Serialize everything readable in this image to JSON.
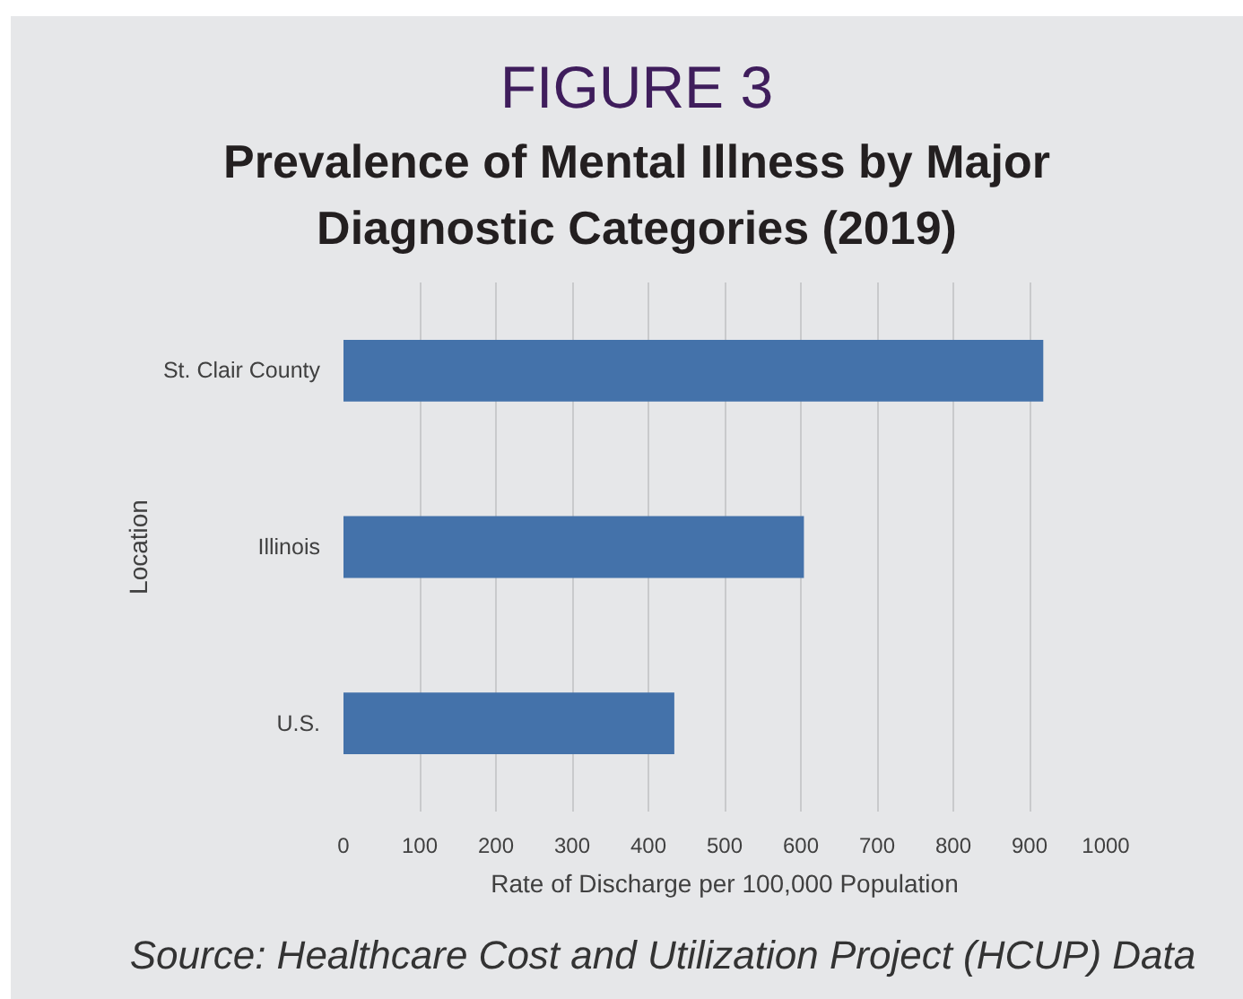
{
  "chart_data": {
    "type": "bar",
    "orientation": "horizontal",
    "title": "FIGURE 3",
    "subtitle": "Prevalence of Mental Illness by Major Diagnostic Categories (2019)",
    "xlabel": "Rate of Discharge per 100,000 Population",
    "ylabel": "Location",
    "categories": [
      "St. Clair County",
      "Illinois",
      "U.S."
    ],
    "values": [
      918,
      604,
      434
    ],
    "color": "#4472aa",
    "xlim": [
      0,
      1000
    ],
    "xticks": [
      0,
      100,
      200,
      300,
      400,
      500,
      600,
      700,
      800,
      900,
      1000
    ],
    "grid": "x",
    "annotations": [
      "Source: Healthcare Cost and Utilization Project (HCUP) Data"
    ]
  }
}
